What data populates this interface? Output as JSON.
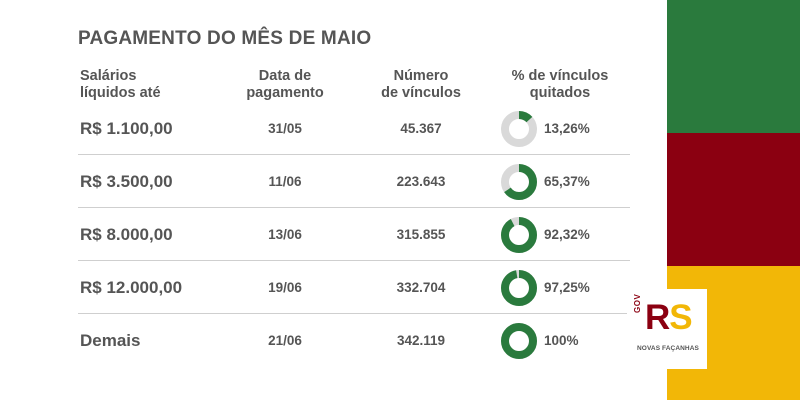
{
  "title": "PAGAMENTO DO MÊS DE MAIO",
  "headers": {
    "salary": "Salários\nlíquidos até",
    "date": "Data de\npagamento",
    "count": "Número\nde vínculos",
    "percent": "% de vínculos\nquitados"
  },
  "rows": [
    {
      "salary": "R$ 1.100,00",
      "date": "31/05",
      "count": "45.367",
      "percent_label": "13,26%",
      "percent_value": 13.26
    },
    {
      "salary": "R$ 3.500,00",
      "date": "11/06",
      "count": "223.643",
      "percent_label": "65,37%",
      "percent_value": 65.37
    },
    {
      "salary": "R$ 8.000,00",
      "date": "13/06",
      "count": "315.855",
      "percent_label": "92,32%",
      "percent_value": 92.32
    },
    {
      "salary": "R$ 12.000,00",
      "date": "19/06",
      "count": "332.704",
      "percent_label": "97,25%",
      "percent_value": 97.25
    },
    {
      "salary": "Demais",
      "date": "21/06",
      "count": "342.119",
      "percent_label": "100%",
      "percent_value": 100
    }
  ],
  "colors": {
    "donut_fill": "#2a7a3d",
    "donut_track": "#d9d9d9",
    "flag_green": "#2a7a3d",
    "flag_red": "#8b0011",
    "flag_yellow": "#f2b707"
  },
  "logo": {
    "prefix": "GOV",
    "letter_r": "R",
    "letter_s": "S",
    "tagline": "NOVAS FAÇANHAS"
  }
}
